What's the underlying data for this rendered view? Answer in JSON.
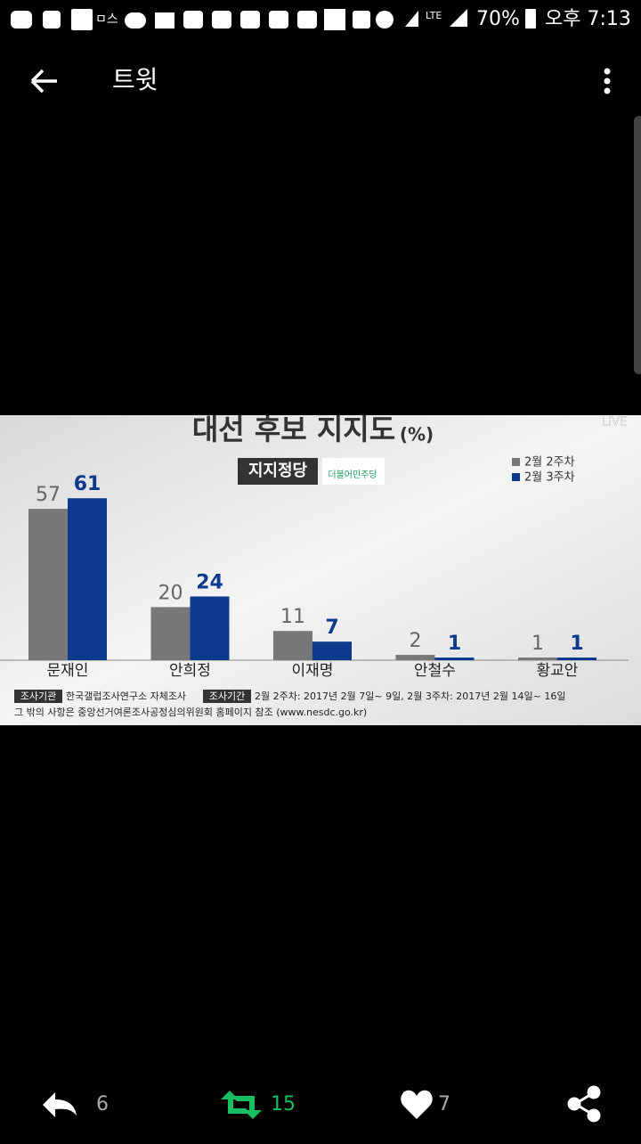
{
  "status_bar": {
    "network": "LTE",
    "battery": "70%",
    "time": "오후 7:13"
  },
  "app_bar": {
    "title": "트윗"
  },
  "chart_data": {
    "type": "bar",
    "title": "대선 후보 지지도",
    "unit": "(%)",
    "badge": "지지정당",
    "party": "더불어민주당",
    "live": "LIVE",
    "categories": [
      "문재인",
      "안희정",
      "이재명",
      "안철수",
      "황교안"
    ],
    "series": [
      {
        "name": "2월 2주차",
        "color": "#777777",
        "values": [
          57,
          20,
          11,
          2,
          1
        ]
      },
      {
        "name": "2월 3주차",
        "color": "#0d3a8c",
        "values": [
          61,
          24,
          7,
          1,
          1
        ]
      }
    ],
    "footnotes": {
      "agency_label": "조사기관",
      "agency": "한국갤럽조사연구소 자체조사",
      "period_label": "조사기간",
      "period": "2월 2주차: 2017년 2월 7일~ 9일, 2월 3주차: 2017년 2월 14일~ 16일",
      "note": "그 밖의 사항은 중앙선거여론조사공정심의위원회 홈페이지 참조 (www.nesdc.go.kr)"
    }
  },
  "actions": {
    "reply": 6,
    "retweet": 15,
    "like": 7
  }
}
